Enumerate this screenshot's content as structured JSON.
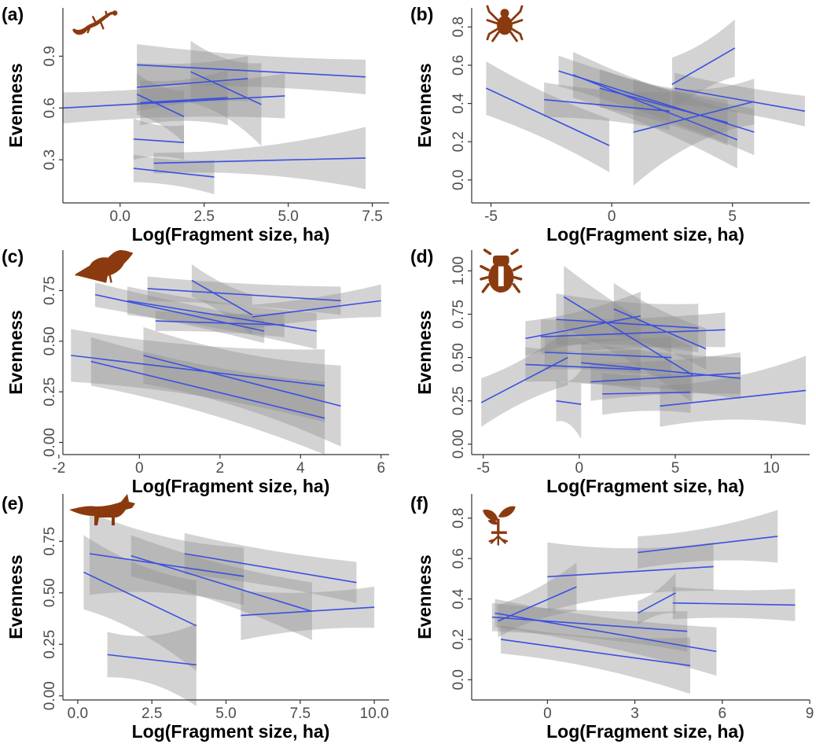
{
  "chart_data": [
    {
      "panel": "(a)",
      "type": "line",
      "taxon_icon": "lizard-icon",
      "xlabel": "Log(Fragment size, ha)",
      "ylabel": "Evenness",
      "xlim": [
        -1.7,
        8.0
      ],
      "ylim": [
        0.05,
        1.18
      ],
      "xticks": [
        0.0,
        2.5,
        5.0,
        7.5
      ],
      "xtick_labels": [
        "0.0",
        "2.5",
        "5.0",
        "7.5"
      ],
      "yticks": [
        0.3,
        0.6,
        0.9
      ],
      "ytick_labels": [
        "0.3",
        "0.6",
        "0.9"
      ],
      "series": [
        {
          "x": [
            -1.7,
            4.9
          ],
          "y": [
            0.6,
            0.67
          ],
          "ci": [
            0.09,
            0.13
          ]
        },
        {
          "x": [
            0.5,
            7.3
          ],
          "y": [
            0.85,
            0.78
          ],
          "ci": [
            0.12,
            0.1
          ]
        },
        {
          "x": [
            0.5,
            3.8
          ],
          "y": [
            0.72,
            0.77
          ],
          "ci": [
            0.14,
            0.13
          ]
        },
        {
          "x": [
            2.1,
            4.2
          ],
          "y": [
            0.81,
            0.62
          ],
          "ci": [
            0.18,
            0.24
          ]
        },
        {
          "x": [
            0.6,
            3.2
          ],
          "y": [
            0.63,
            0.66
          ],
          "ci": [
            0.13,
            0.16
          ]
        },
        {
          "x": [
            0.5,
            1.9
          ],
          "y": [
            0.68,
            0.55
          ],
          "ci": [
            0.12,
            0.15
          ]
        },
        {
          "x": [
            0.4,
            1.9
          ],
          "y": [
            0.42,
            0.4
          ],
          "ci": [
            0.12,
            0.1
          ]
        },
        {
          "x": [
            1.0,
            7.3
          ],
          "y": [
            0.28,
            0.31
          ],
          "ci": [
            0.06,
            0.18
          ]
        },
        {
          "x": [
            0.4,
            2.8
          ],
          "y": [
            0.25,
            0.2
          ],
          "ci": [
            0.08,
            0.1
          ]
        }
      ]
    },
    {
      "panel": "(b)",
      "type": "line",
      "taxon_icon": "spider-icon",
      "xlabel": "Log(Fragment size, ha)",
      "ylabel": "Evenness",
      "xlim": [
        -5.8,
        8.2
      ],
      "ylim": [
        -0.12,
        0.9
      ],
      "xticks": [
        -5,
        0,
        5
      ],
      "xtick_labels": [
        "-5",
        "0",
        "5"
      ],
      "yticks": [
        0.0,
        0.2,
        0.4,
        0.6,
        0.8
      ],
      "ytick_labels": [
        "0.0",
        "0.2",
        "0.4",
        "0.6",
        "0.8"
      ],
      "series": [
        {
          "x": [
            -5.2,
            -0.1
          ],
          "y": [
            0.48,
            0.18
          ],
          "ci": [
            0.14,
            0.14
          ]
        },
        {
          "x": [
            -2.8,
            2.4
          ],
          "y": [
            0.42,
            0.36
          ],
          "ci": [
            0.09,
            0.1
          ]
        },
        {
          "x": [
            -2.2,
            5.9
          ],
          "y": [
            0.57,
            0.25
          ],
          "ci": [
            0.08,
            0.12
          ]
        },
        {
          "x": [
            -1.6,
            5.2
          ],
          "y": [
            0.55,
            0.21
          ],
          "ci": [
            0.12,
            0.15
          ]
        },
        {
          "x": [
            -0.5,
            4.8
          ],
          "y": [
            0.48,
            0.3
          ],
          "ci": [
            0.1,
            0.12
          ]
        },
        {
          "x": [
            0.9,
            5.9
          ],
          "y": [
            0.25,
            0.41
          ],
          "ci": [
            0.28,
            0.12
          ]
        },
        {
          "x": [
            2.5,
            5.1
          ],
          "y": [
            0.5,
            0.69
          ],
          "ci": [
            0.14,
            0.15
          ]
        },
        {
          "x": [
            2.6,
            8.0
          ],
          "y": [
            0.48,
            0.36
          ],
          "ci": [
            0.08,
            0.08
          ]
        }
      ]
    },
    {
      "panel": "(c)",
      "type": "line",
      "taxon_icon": "bird-icon",
      "xlabel": "Log(Fragment size, ha)",
      "ylabel": "Evenness",
      "xlim": [
        -1.9,
        6.2
      ],
      "ylim": [
        -0.06,
        0.95
      ],
      "xticks": [
        -2,
        0,
        2,
        4,
        6
      ],
      "xtick_labels": [
        "-2",
        "0",
        "2",
        "4",
        "6"
      ],
      "yticks": [
        0.0,
        0.25,
        0.5,
        0.75
      ],
      "ytick_labels": [
        "0.00",
        "0.25",
        "0.50",
        "0.75"
      ],
      "series": [
        {
          "x": [
            -1.1,
            3.1
          ],
          "y": [
            0.73,
            0.55
          ],
          "ci": [
            0.06,
            0.06
          ]
        },
        {
          "x": [
            -0.3,
            4.4
          ],
          "y": [
            0.7,
            0.55
          ],
          "ci": [
            0.07,
            0.09
          ]
        },
        {
          "x": [
            0.2,
            5.0
          ],
          "y": [
            0.76,
            0.7
          ],
          "ci": [
            0.06,
            0.07
          ]
        },
        {
          "x": [
            1.3,
            2.8
          ],
          "y": [
            0.8,
            0.63
          ],
          "ci": [
            0.08,
            0.1
          ]
        },
        {
          "x": [
            0.4,
            3.6
          ],
          "y": [
            0.6,
            0.58
          ],
          "ci": [
            0.05,
            0.06
          ]
        },
        {
          "x": [
            2.8,
            6.0
          ],
          "y": [
            0.62,
            0.7
          ],
          "ci": [
            0.06,
            0.08
          ]
        },
        {
          "x": [
            -1.7,
            4.6
          ],
          "y": [
            0.43,
            0.28
          ],
          "ci": [
            0.13,
            0.18
          ]
        },
        {
          "x": [
            -1.2,
            4.6
          ],
          "y": [
            0.4,
            0.12
          ],
          "ci": [
            0.12,
            0.18
          ]
        },
        {
          "x": [
            0.1,
            5.0
          ],
          "y": [
            0.43,
            0.18
          ],
          "ci": [
            0.14,
            0.2
          ]
        }
      ]
    },
    {
      "panel": "(d)",
      "type": "line",
      "taxon_icon": "beetle-icon",
      "xlabel": "Log(Fragment size, ha)",
      "ylabel": "Evenness",
      "xlim": [
        -5.6,
        12.0
      ],
      "ylim": [
        -0.06,
        1.12
      ],
      "xticks": [
        -5,
        0,
        5,
        10
      ],
      "xtick_labels": [
        "-5",
        "0",
        "5",
        "10"
      ],
      "yticks": [
        0.0,
        0.25,
        0.5,
        0.75,
        1.0
      ],
      "ytick_labels": [
        "0.00",
        "0.25",
        "0.50",
        "0.75",
        "1.00"
      ],
      "series": [
        {
          "x": [
            -5.1,
            -0.6
          ],
          "y": [
            0.24,
            0.5
          ],
          "ci": [
            0.14,
            0.16
          ]
        },
        {
          "x": [
            -2.0,
            7.6
          ],
          "y": [
            0.62,
            0.66
          ],
          "ci": [
            0.1,
            0.1
          ]
        },
        {
          "x": [
            -1.8,
            4.8
          ],
          "y": [
            0.53,
            0.5
          ],
          "ci": [
            0.1,
            0.12
          ]
        },
        {
          "x": [
            -1.2,
            6.2
          ],
          "y": [
            0.72,
            0.67
          ],
          "ci": [
            0.15,
            0.14
          ]
        },
        {
          "x": [
            -0.8,
            5.9
          ],
          "y": [
            0.85,
            0.4
          ],
          "ci": [
            0.18,
            0.16
          ]
        },
        {
          "x": [
            0.1,
            8.4
          ],
          "y": [
            0.47,
            0.38
          ],
          "ci": [
            0.12,
            0.12
          ]
        },
        {
          "x": [
            0.6,
            8.4
          ],
          "y": [
            0.36,
            0.41
          ],
          "ci": [
            0.11,
            0.12
          ]
        },
        {
          "x": [
            1.8,
            6.6
          ],
          "y": [
            0.78,
            0.55
          ],
          "ci": [
            0.15,
            0.12
          ]
        },
        {
          "x": [
            -2.8,
            3.2
          ],
          "y": [
            0.46,
            0.43
          ],
          "ci": [
            0.1,
            0.12
          ]
        },
        {
          "x": [
            1.2,
            5.8
          ],
          "y": [
            0.29,
            0.3
          ],
          "ci": [
            0.12,
            0.12
          ]
        },
        {
          "x": [
            4.2,
            11.8
          ],
          "y": [
            0.22,
            0.31
          ],
          "ci": [
            0.12,
            0.2
          ]
        },
        {
          "x": [
            -1.2,
            0.1
          ],
          "y": [
            0.25,
            0.23
          ],
          "ci": [
            0.12,
            0.2
          ]
        },
        {
          "x": [
            -2.8,
            3.2
          ],
          "y": [
            0.61,
            0.74
          ],
          "ci": [
            0.1,
            0.14
          ]
        }
      ]
    },
    {
      "panel": "(e)",
      "type": "line",
      "taxon_icon": "fox-icon",
      "xlabel": "Log(Fragment size, ha)",
      "ylabel": "Evenness",
      "xlim": [
        -0.5,
        10.5
      ],
      "ylim": [
        -0.02,
        0.98
      ],
      "xticks": [
        0.0,
        2.5,
        5.0,
        7.5,
        10.0
      ],
      "xtick_labels": [
        "0.0",
        "2.5",
        "5.0",
        "7.5",
        "10.0"
      ],
      "yticks": [
        0.0,
        0.25,
        0.5,
        0.75
      ],
      "ytick_labels": [
        "0.00",
        "0.25",
        "0.50",
        "0.75"
      ],
      "series": [
        {
          "x": [
            0.2,
            4.0
          ],
          "y": [
            0.6,
            0.34
          ],
          "ci": [
            0.18,
            0.22
          ]
        },
        {
          "x": [
            0.4,
            5.6
          ],
          "y": [
            0.69,
            0.58
          ],
          "ci": [
            0.2,
            0.14
          ]
        },
        {
          "x": [
            1.8,
            7.9
          ],
          "y": [
            0.68,
            0.41
          ],
          "ci": [
            0.1,
            0.14
          ]
        },
        {
          "x": [
            3.6,
            9.4
          ],
          "y": [
            0.69,
            0.55
          ],
          "ci": [
            0.1,
            0.1
          ]
        },
        {
          "x": [
            5.5,
            10.0
          ],
          "y": [
            0.39,
            0.43
          ],
          "ci": [
            0.12,
            0.1
          ]
        },
        {
          "x": [
            1.0,
            4.0
          ],
          "y": [
            0.2,
            0.15
          ],
          "ci": [
            0.11,
            0.2
          ]
        }
      ]
    },
    {
      "panel": "(f)",
      "type": "line",
      "taxon_icon": "seedling-icon",
      "xlabel": "Log(Fragment size, ha)",
      "ylabel": "Evenness",
      "xlim": [
        -2.6,
        9.0
      ],
      "ylim": [
        -0.1,
        0.92
      ],
      "xticks": [
        0,
        3,
        6,
        9
      ],
      "xtick_labels": [
        "0",
        "3",
        "6",
        "9"
      ],
      "yticks": [
        0.0,
        0.2,
        0.4,
        0.6,
        0.8
      ],
      "ytick_labels": [
        "0.0",
        "0.2",
        "0.4",
        "0.6",
        "0.8"
      ],
      "series": [
        {
          "x": [
            -1.9,
            4.8
          ],
          "y": [
            0.31,
            0.24
          ],
          "ci": [
            0.07,
            0.1
          ]
        },
        {
          "x": [
            -1.8,
            5.8
          ],
          "y": [
            0.33,
            0.14
          ],
          "ci": [
            0.07,
            0.12
          ]
        },
        {
          "x": [
            -1.7,
            1.0
          ],
          "y": [
            0.29,
            0.46
          ],
          "ci": [
            0.08,
            0.12
          ]
        },
        {
          "x": [
            -1.6,
            4.9
          ],
          "y": [
            0.2,
            0.07
          ],
          "ci": [
            0.07,
            0.14
          ]
        },
        {
          "x": [
            0.0,
            5.7
          ],
          "y": [
            0.51,
            0.56
          ],
          "ci": [
            0.17,
            0.12
          ]
        },
        {
          "x": [
            3.1,
            7.9
          ],
          "y": [
            0.63,
            0.71
          ],
          "ci": [
            0.08,
            0.13
          ]
        },
        {
          "x": [
            3.1,
            4.4
          ],
          "y": [
            0.33,
            0.43
          ],
          "ci": [
            0.06,
            0.1
          ]
        },
        {
          "x": [
            4.3,
            8.5
          ],
          "y": [
            0.38,
            0.37
          ],
          "ci": [
            0.08,
            0.08
          ]
        }
      ]
    }
  ]
}
